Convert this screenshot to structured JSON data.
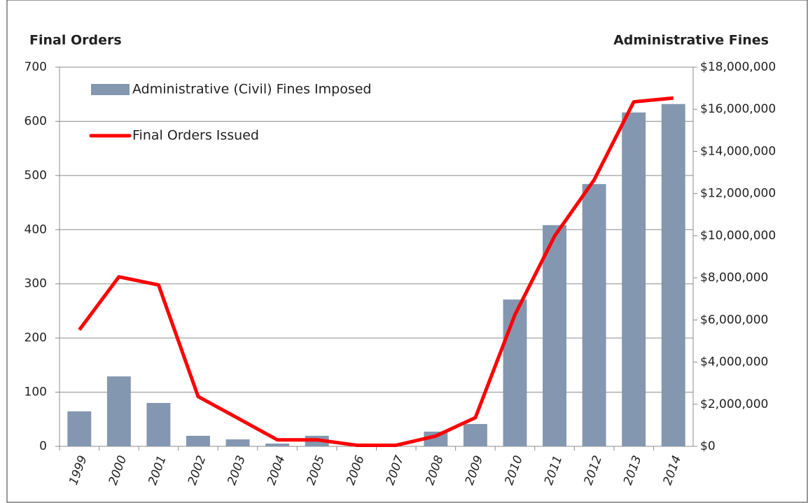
{
  "chart_data": {
    "type": "combo",
    "y_label": "Final Orders",
    "y2_label": "Administrative Fines",
    "categories": [
      "1999",
      "2000",
      "2001",
      "2002",
      "2003",
      "2004",
      "2005",
      "2006",
      "2007",
      "2008",
      "2009",
      "2010",
      "2011",
      "2012",
      "2013",
      "2014"
    ],
    "series": [
      {
        "name": "Administrative (Civil) Fines Imposed",
        "type": "bar",
        "axis": "y2",
        "color": "#8497b0",
        "values": [
          1660000,
          3320000,
          2060000,
          500000,
          330000,
          130000,
          500000,
          0,
          0,
          700000,
          1060000,
          6970000,
          10500000,
          12450000,
          15850000,
          16250000
        ]
      },
      {
        "name": "Final Orders Issued",
        "type": "line",
        "axis": "y",
        "color": "#ff0000",
        "values": [
          215,
          313,
          298,
          92,
          52,
          12,
          12,
          2,
          2,
          19,
          53,
          243,
          388,
          492,
          636,
          643
        ]
      }
    ],
    "ylim": [
      0,
      700
    ],
    "yticks": [
      0,
      100,
      200,
      300,
      400,
      500,
      600,
      700
    ],
    "y2lim": [
      0,
      18000000
    ],
    "y2ticks": [
      {
        "value": 0,
        "label": "$0"
      },
      {
        "value": 2000000,
        "label": "$2,000,000"
      },
      {
        "value": 4000000,
        "label": "$4,000,000"
      },
      {
        "value": 6000000,
        "label": "$6,000,000"
      },
      {
        "value": 8000000,
        "label": "$8,000,000"
      },
      {
        "value": 10000000,
        "label": "$10,000,000"
      },
      {
        "value": 12000000,
        "label": "$12,000,000"
      },
      {
        "value": 14000000,
        "label": "$14,000,000"
      },
      {
        "value": 16000000,
        "label": "$16,000,000"
      },
      {
        "value": 18000000,
        "label": "$18,000,000"
      }
    ],
    "grid": true,
    "legend": "upper-left"
  }
}
